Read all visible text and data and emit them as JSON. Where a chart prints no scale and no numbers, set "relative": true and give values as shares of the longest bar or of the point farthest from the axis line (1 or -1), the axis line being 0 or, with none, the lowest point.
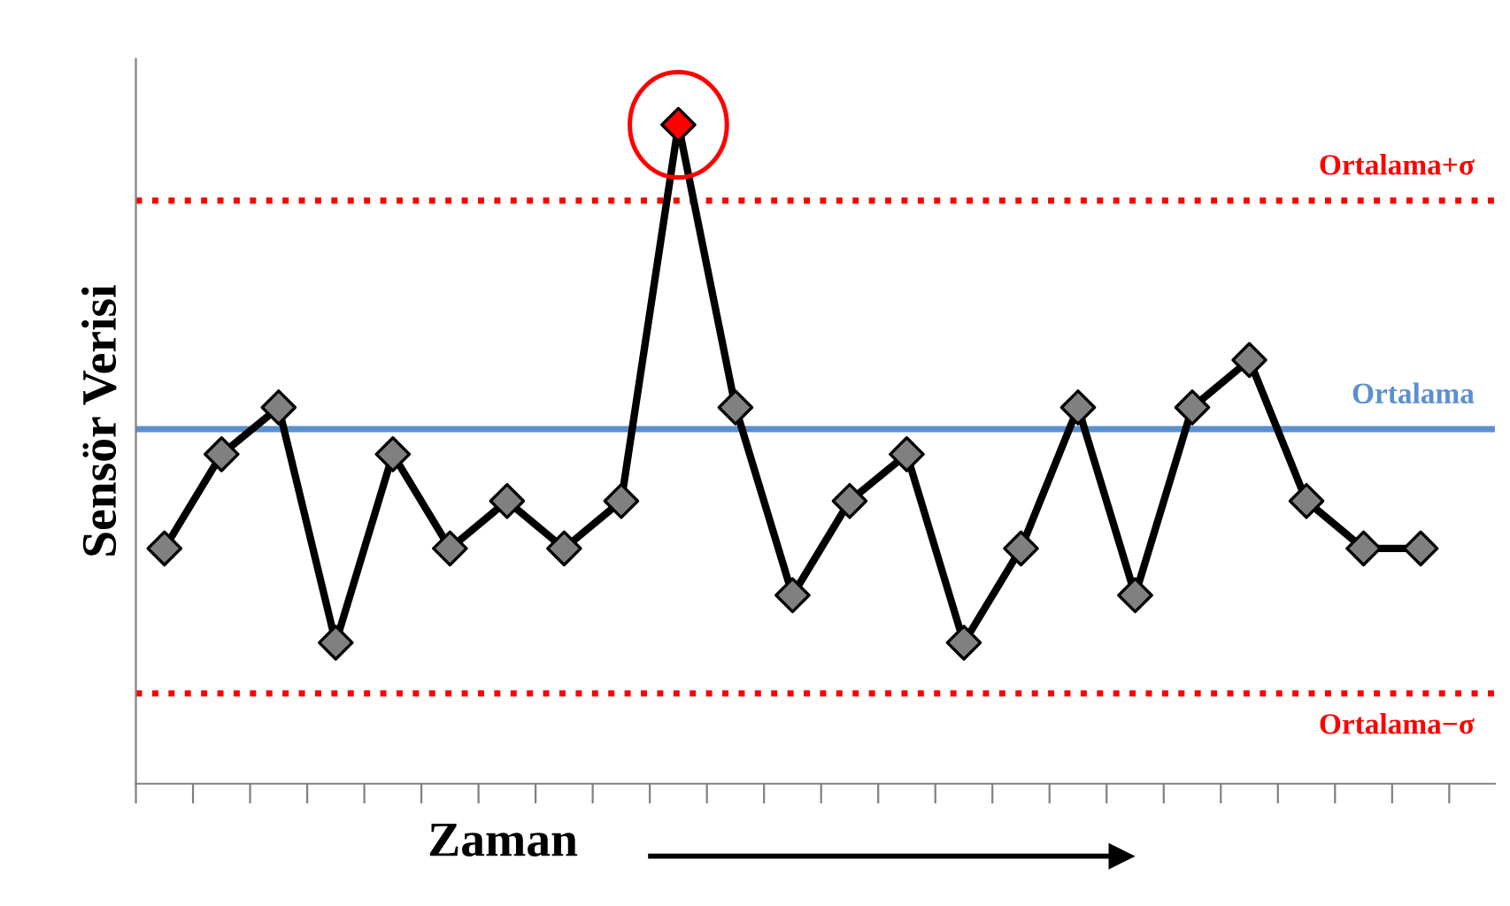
{
  "chart_data": {
    "type": "line",
    "relative": true,
    "xlabel": "Zaman",
    "ylabel": "Sensör Verisi",
    "categories": [
      null,
      null,
      null,
      null,
      null,
      null,
      null,
      null,
      null,
      null,
      null,
      null,
      null,
      null,
      null,
      null,
      null,
      null,
      null,
      null,
      null,
      null,
      null
    ],
    "series": [
      {
        "color": "#000000",
        "marker": "diamond",
        "values": [
          0.357,
          0.5,
          0.571,
          0.214,
          0.5,
          0.357,
          0.429,
          0.357,
          0.429,
          1,
          0.571,
          0.286,
          0.429,
          0.5,
          0.214,
          0.357,
          0.571,
          0.286,
          0.571,
          0.643,
          0.429,
          0.357,
          0.357
        ],
        "colors": [
          "#808080",
          "#808080",
          "#808080",
          "#808080",
          "#808080",
          "#808080",
          "#808080",
          "#808080",
          "#808080",
          "#ff0000",
          "#808080",
          "#808080",
          "#808080",
          "#808080",
          "#808080",
          "#808080",
          "#808080",
          "#808080",
          "#808080",
          "#808080",
          "#808080",
          "#808080",
          "#808080"
        ]
      }
    ],
    "ref_lines": [
      {
        "axis": "y",
        "value": 0.885,
        "label": "Ortalama+σ",
        "color": "#ff0000",
        "line_style": "dotted"
      },
      {
        "axis": "y",
        "value": 0.538,
        "label": "Ortalama",
        "color": "#5b8fd0",
        "line_style": "solid"
      },
      {
        "axis": "y",
        "value": 0.137,
        "label": "Ortalama−σ",
        "color": "#ff0000",
        "line_style": "dotted"
      }
    ],
    "grid": false,
    "legend": false
  }
}
